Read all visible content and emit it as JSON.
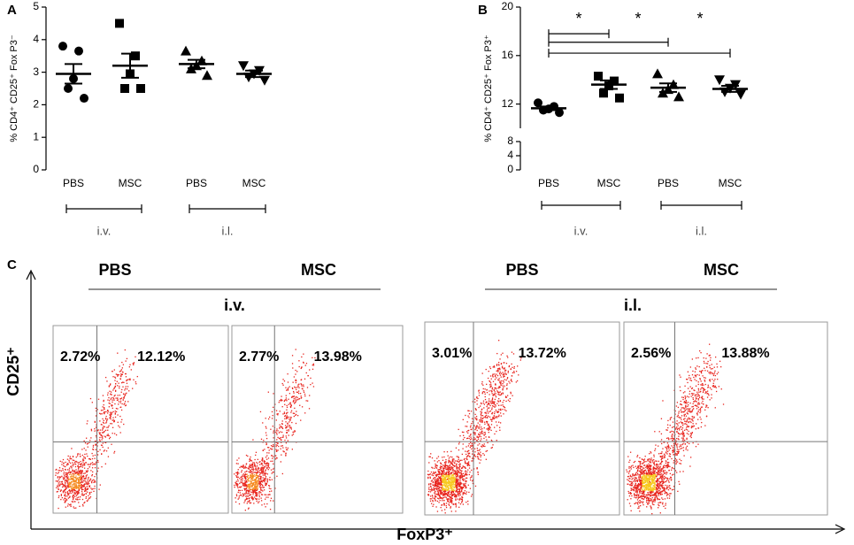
{
  "chart_data": [
    {
      "type": "dot",
      "panel": "A",
      "ylabel": "% CD4⁺ CD25⁺ Fox P3⁻",
      "categories": [
        "PBS",
        "MSC",
        "PBS",
        "MSC"
      ],
      "markers": [
        "circle",
        "square",
        "triangle",
        "triangle-down"
      ],
      "color": "#000000",
      "points": [
        [
          3.8,
          3.65,
          2.8,
          2.5,
          2.2
        ],
        [
          4.5,
          3.5,
          2.95,
          2.5,
          2.5
        ],
        [
          3.65,
          3.35,
          3.2,
          3.1,
          2.9
        ],
        [
          3.2,
          3.05,
          2.95,
          2.85,
          2.75
        ]
      ],
      "means": [
        2.95,
        3.2,
        3.25,
        2.95
      ],
      "sem": [
        0.3,
        0.37,
        0.13,
        0.1
      ],
      "ylim": [
        0,
        5
      ],
      "yticks": [
        0,
        1,
        2,
        3,
        4,
        5
      ],
      "groups": [
        {
          "label": "i.v.",
          "span": [
            0,
            1
          ]
        },
        {
          "label": "i.l.",
          "span": [
            2,
            3
          ]
        }
      ]
    },
    {
      "type": "dot",
      "panel": "B",
      "ylabel": "% CD4⁺ CD25⁺ Fox P3⁺",
      "categories": [
        "PBS",
        "MSC",
        "PBS",
        "MSC"
      ],
      "markers": [
        "circle",
        "square",
        "triangle",
        "triangle-down"
      ],
      "color": "#000000",
      "points": [
        [
          12.1,
          11.8,
          11.6,
          11.5,
          11.3
        ],
        [
          14.3,
          13.9,
          13.5,
          12.9,
          12.5
        ],
        [
          14.5,
          13.6,
          13.2,
          12.9,
          12.6
        ],
        [
          14.0,
          13.6,
          13.3,
          13.0,
          12.8
        ]
      ],
      "means": [
        11.65,
        13.6,
        13.35,
        13.25
      ],
      "sem": [
        0.15,
        0.35,
        0.35,
        0.25
      ],
      "ylim": [
        0,
        20
      ],
      "yticks": [
        0,
        4,
        8,
        12,
        16,
        20
      ],
      "ybreak": [
        8,
        10
      ],
      "comparisons": [
        {
          "from": 0,
          "to": 1,
          "y": 17.8,
          "label": "*"
        },
        {
          "from": 0,
          "to": 2,
          "y": 17.1,
          "label": "*"
        },
        {
          "from": 0,
          "to": 3,
          "y": 16.2,
          "label": "*"
        }
      ],
      "groups": [
        {
          "label": "i.v.",
          "span": [
            0,
            1
          ]
        },
        {
          "label": "i.l.",
          "span": [
            2,
            3
          ]
        }
      ]
    }
  ],
  "panel_c": {
    "panel": "C",
    "ylabel": "CD25⁺",
    "xlabel": "FoxP3⁺",
    "headers": [
      {
        "left": "PBS",
        "right": "MSC",
        "route": "i.v."
      },
      {
        "left": "PBS",
        "right": "MSC",
        "route": "i.l."
      }
    ],
    "plots": [
      {
        "upper_left": "2.72%",
        "upper_right": "12.12%"
      },
      {
        "upper_left": "2.77%",
        "upper_right": "13.98%"
      },
      {
        "upper_left": "3.01%",
        "upper_right": "13.72%"
      },
      {
        "upper_left": "2.56%",
        "upper_right": "13.88%"
      }
    ]
  }
}
